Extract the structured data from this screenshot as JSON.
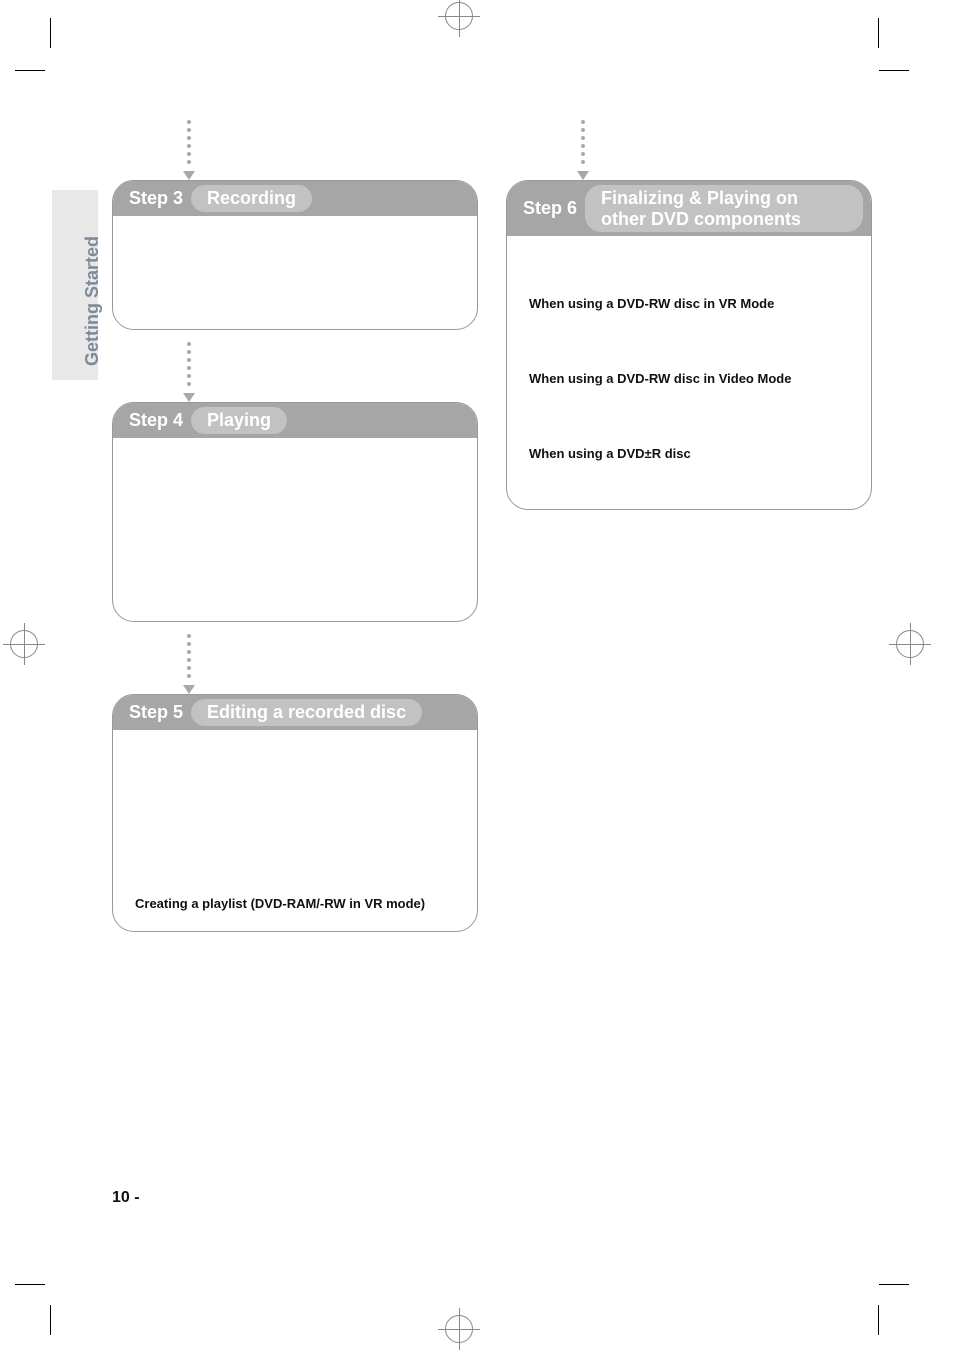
{
  "sideTab": "Getting Started",
  "pageNumber": "10 -",
  "colors": {
    "headerBg": "#a6a6a6",
    "pillBg": "#c2c2c2",
    "headerText": "#ffffff",
    "border": "#999999",
    "arrowDot": "#a8a8a8",
    "sideTabBg": "#e8e8e8",
    "sideTabText": "#7d8a99",
    "bodyText": "#111111"
  },
  "layout": {
    "pageWidth": 954,
    "pageHeight": 1345,
    "borderRadius": 22,
    "pillRadius": 16
  },
  "steps": {
    "s3": {
      "num": "Step 3",
      "title": "Recording"
    },
    "s4": {
      "num": "Step 4",
      "title": "Playing"
    },
    "s5": {
      "num": "Step 5",
      "title": "Editing a recorded disc",
      "body1": "Creating a playlist (DVD-RAM/-RW in VR mode)"
    },
    "s6": {
      "num": "Step 6",
      "title": "Finalizing & Playing on other DVD components",
      "body1": "When using a DVD-RW disc in VR Mode",
      "body2": "When using a DVD-RW disc in Video Mode",
      "body3": "When using a DVD±R disc"
    }
  }
}
